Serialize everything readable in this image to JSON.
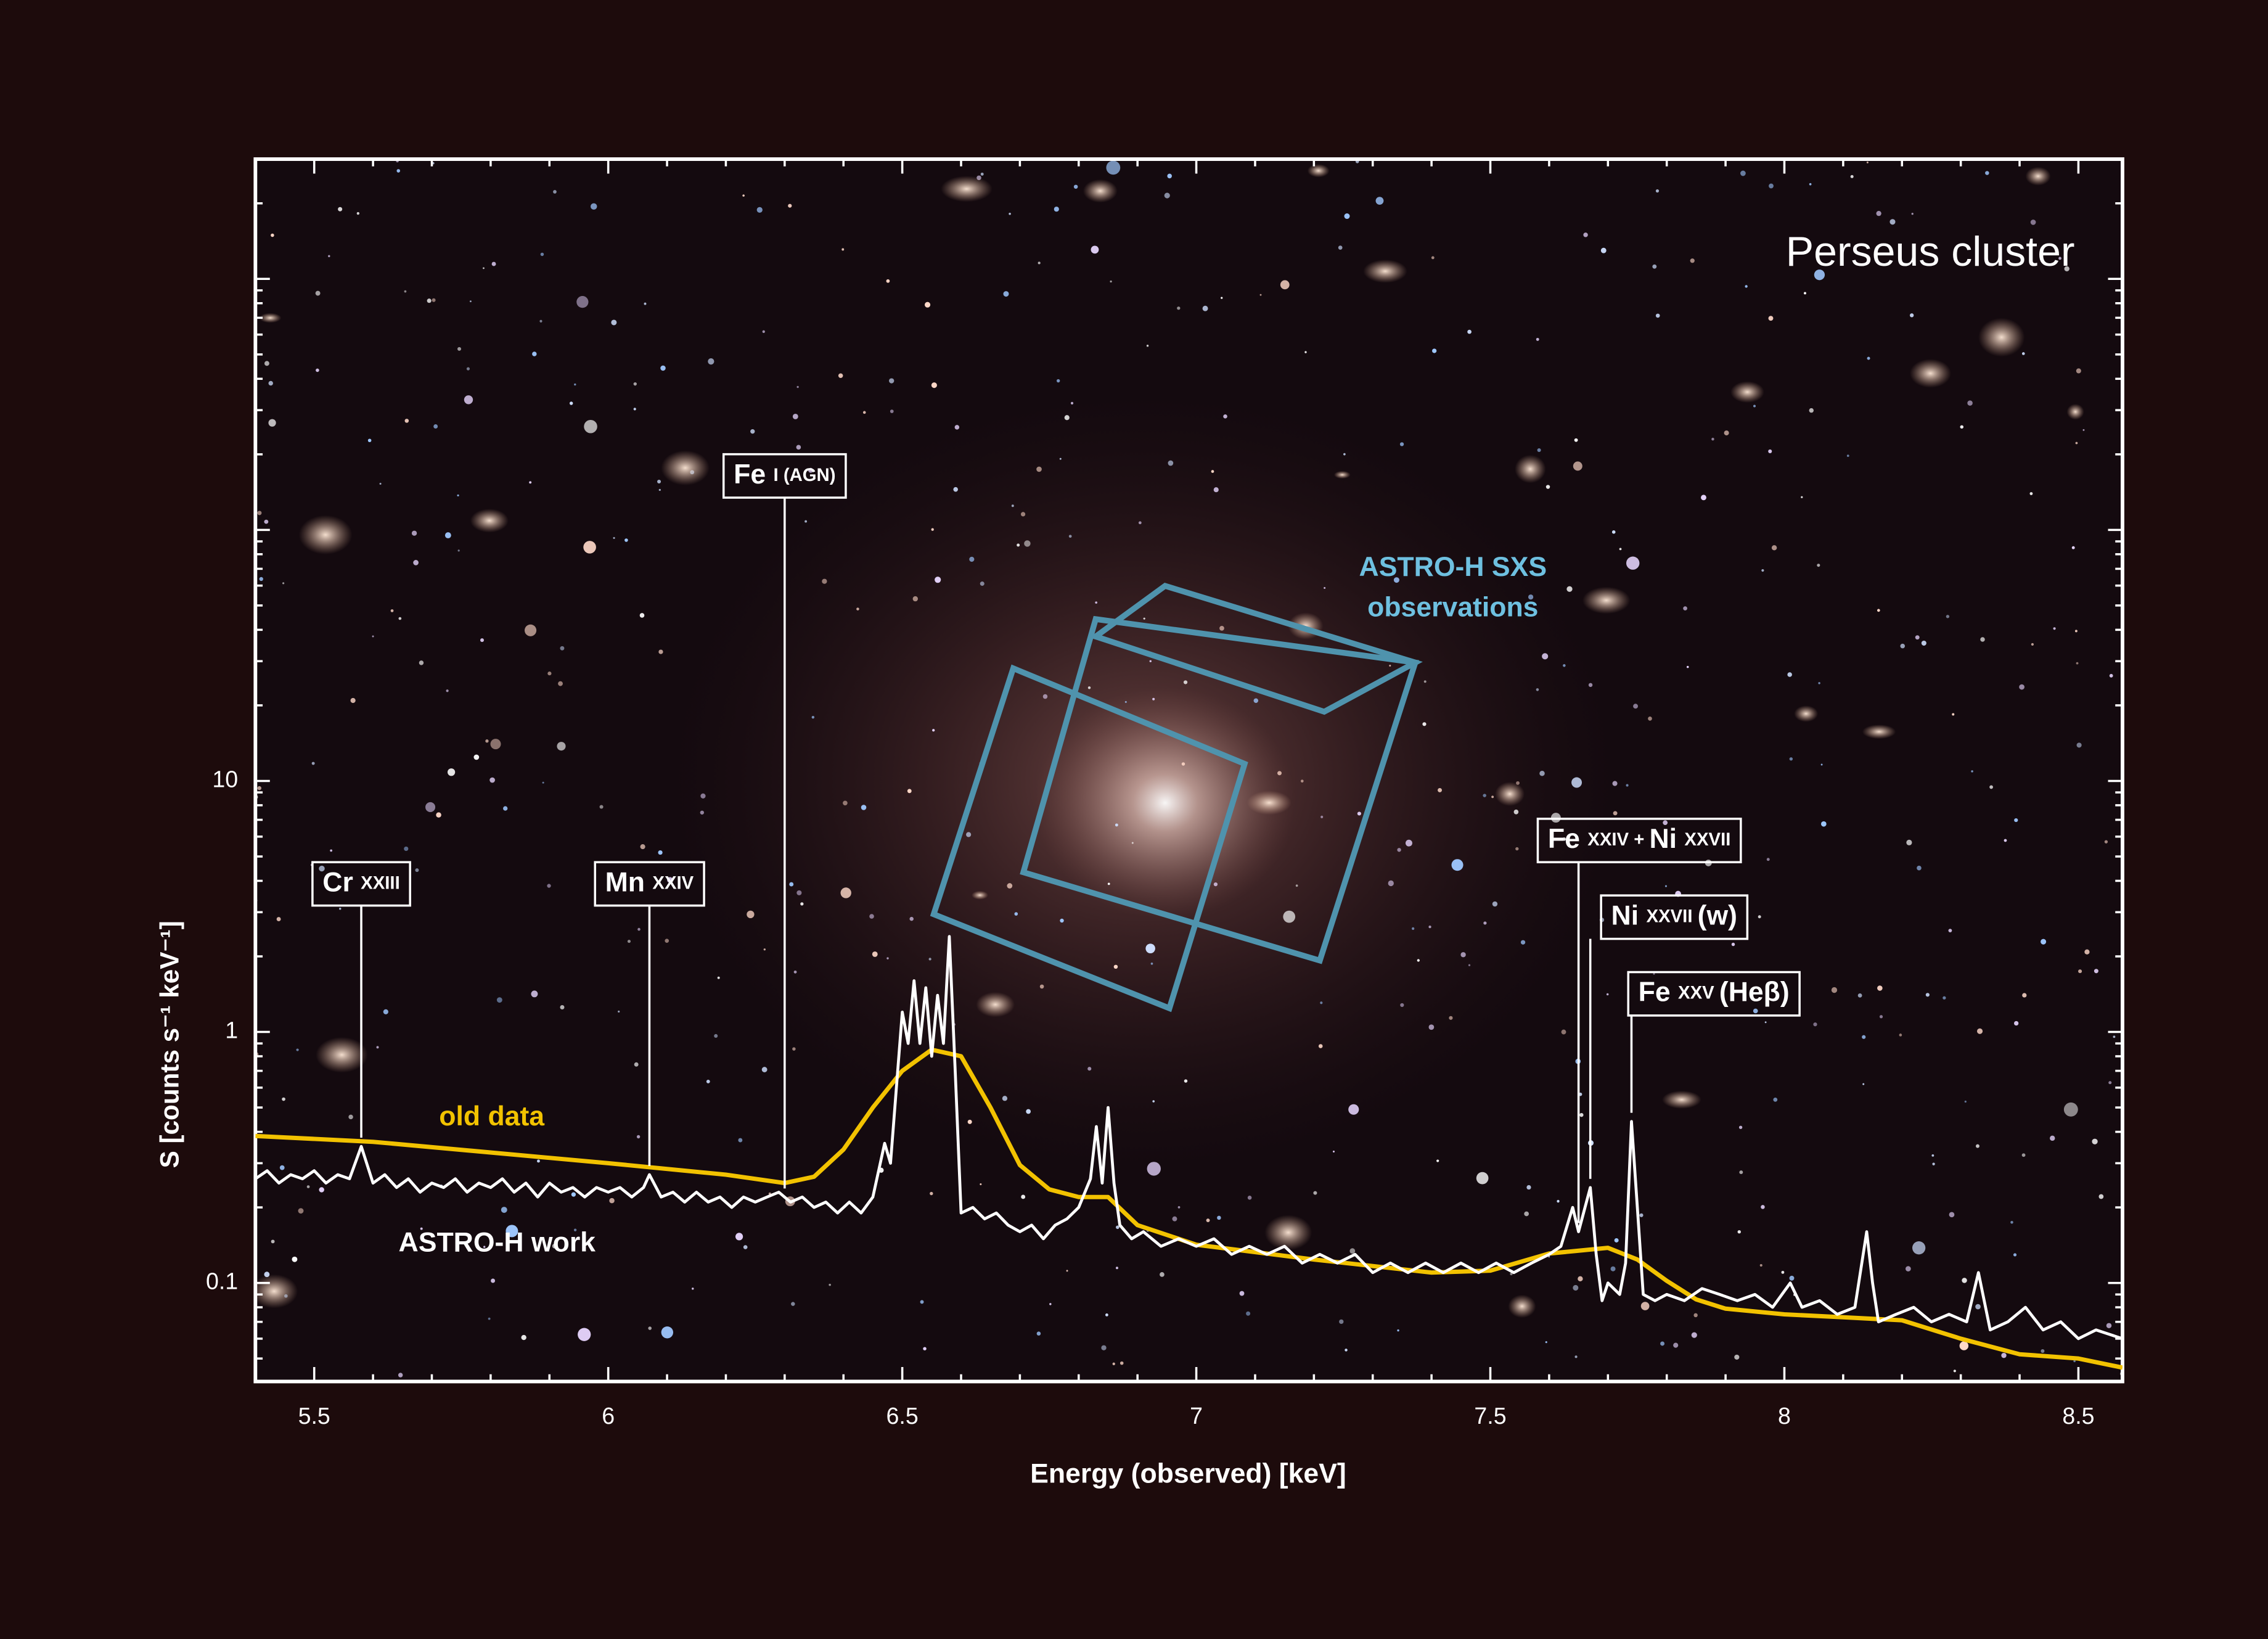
{
  "chart_data": {
    "type": "line",
    "title": "Perseus cluster",
    "sxs_label": [
      "ASTRO-H SXS",
      "observations"
    ],
    "x_label": "Energy (observed) [keV]",
    "y_label": "S [counts s⁻¹ keV⁻¹]",
    "xlim": [
      5.4,
      8.575
    ],
    "xticks": [
      5.5,
      6,
      6.5,
      7,
      7.5,
      8,
      8.5
    ],
    "ylim": [
      0.0405,
      3000
    ],
    "yticks": [
      0.1,
      1,
      10
    ],
    "log_y": true,
    "series": [
      {
        "name": "old data",
        "color": "#f2c200",
        "x": [
          5.4,
          5.6,
          6.0,
          6.2,
          6.3,
          6.35,
          6.4,
          6.45,
          6.5,
          6.55,
          6.6,
          6.65,
          6.7,
          6.75,
          6.8,
          6.85,
          6.9,
          7.0,
          7.2,
          7.4,
          7.5,
          7.6,
          7.7,
          7.75,
          7.8,
          7.85,
          7.9,
          8.0,
          8.1,
          8.2,
          8.3,
          8.4,
          8.5,
          8.575
        ],
        "values": [
          0.385,
          0.365,
          0.3,
          0.27,
          0.25,
          0.265,
          0.34,
          0.5,
          0.7,
          0.85,
          0.8,
          0.5,
          0.295,
          0.236,
          0.22,
          0.22,
          0.17,
          0.142,
          0.124,
          0.11,
          0.112,
          0.131,
          0.138,
          0.124,
          0.102,
          0.086,
          0.079,
          0.075,
          0.073,
          0.071,
          0.06,
          0.052,
          0.05,
          0.046
        ]
      },
      {
        "name": "ASTRO-H work",
        "color": "#ffffff",
        "x": [
          5.4,
          5.42,
          5.44,
          5.46,
          5.48,
          5.5,
          5.52,
          5.54,
          5.56,
          5.58,
          5.6,
          5.62,
          5.64,
          5.66,
          5.68,
          5.7,
          5.72,
          5.74,
          5.76,
          5.78,
          5.8,
          5.82,
          5.84,
          5.86,
          5.88,
          5.9,
          5.92,
          5.94,
          5.96,
          5.98,
          6.0,
          6.02,
          6.04,
          6.06,
          6.07,
          6.09,
          6.11,
          6.13,
          6.15,
          6.17,
          6.19,
          6.21,
          6.23,
          6.25,
          6.27,
          6.29,
          6.31,
          6.33,
          6.35,
          6.37,
          6.39,
          6.41,
          6.43,
          6.45,
          6.47,
          6.48,
          6.5,
          6.51,
          6.52,
          6.53,
          6.54,
          6.55,
          6.56,
          6.57,
          6.58,
          6.59,
          6.6,
          6.62,
          6.64,
          6.66,
          6.68,
          6.7,
          6.72,
          6.74,
          6.76,
          6.78,
          6.8,
          6.82,
          6.83,
          6.84,
          6.85,
          6.86,
          6.87,
          6.89,
          6.91,
          6.94,
          6.97,
          7.0,
          7.03,
          7.06,
          7.09,
          7.12,
          7.15,
          7.18,
          7.21,
          7.24,
          7.27,
          7.3,
          7.33,
          7.36,
          7.39,
          7.42,
          7.45,
          7.48,
          7.51,
          7.54,
          7.57,
          7.6,
          7.62,
          7.64,
          7.65,
          7.67,
          7.68,
          7.69,
          7.7,
          7.72,
          7.73,
          7.74,
          7.75,
          7.76,
          7.78,
          7.8,
          7.83,
          7.86,
          7.89,
          7.92,
          7.95,
          7.98,
          8.01,
          8.03,
          8.06,
          8.09,
          8.12,
          8.14,
          8.15,
          8.16,
          8.19,
          8.22,
          8.25,
          8.28,
          8.31,
          8.33,
          8.35,
          8.38,
          8.41,
          8.44,
          8.47,
          8.5,
          8.53,
          8.575
        ],
        "values": [
          0.26,
          0.28,
          0.25,
          0.27,
          0.26,
          0.28,
          0.25,
          0.27,
          0.26,
          0.35,
          0.25,
          0.27,
          0.24,
          0.26,
          0.23,
          0.25,
          0.24,
          0.26,
          0.23,
          0.25,
          0.24,
          0.26,
          0.23,
          0.25,
          0.22,
          0.25,
          0.23,
          0.24,
          0.22,
          0.24,
          0.23,
          0.24,
          0.22,
          0.24,
          0.27,
          0.22,
          0.23,
          0.21,
          0.23,
          0.21,
          0.22,
          0.2,
          0.22,
          0.21,
          0.22,
          0.23,
          0.21,
          0.22,
          0.2,
          0.21,
          0.19,
          0.21,
          0.19,
          0.22,
          0.36,
          0.3,
          1.2,
          0.9,
          1.6,
          0.9,
          1.5,
          0.8,
          1.4,
          0.9,
          2.4,
          0.7,
          0.19,
          0.2,
          0.18,
          0.19,
          0.17,
          0.16,
          0.17,
          0.15,
          0.17,
          0.18,
          0.2,
          0.26,
          0.42,
          0.25,
          0.5,
          0.25,
          0.17,
          0.15,
          0.16,
          0.14,
          0.15,
          0.14,
          0.15,
          0.13,
          0.14,
          0.13,
          0.14,
          0.12,
          0.13,
          0.12,
          0.13,
          0.11,
          0.12,
          0.11,
          0.12,
          0.11,
          0.12,
          0.11,
          0.12,
          0.11,
          0.12,
          0.13,
          0.14,
          0.2,
          0.16,
          0.24,
          0.13,
          0.085,
          0.1,
          0.09,
          0.12,
          0.44,
          0.2,
          0.09,
          0.085,
          0.09,
          0.085,
          0.095,
          0.09,
          0.085,
          0.09,
          0.08,
          0.1,
          0.08,
          0.085,
          0.075,
          0.08,
          0.16,
          0.1,
          0.07,
          0.075,
          0.08,
          0.07,
          0.075,
          0.07,
          0.11,
          0.065,
          0.07,
          0.08,
          0.065,
          0.07,
          0.06,
          0.065,
          0.06
        ]
      }
    ],
    "annotations": [
      {
        "label": "Cr XXIII",
        "x": 5.58
      },
      {
        "label": "Mn XXIV",
        "x": 6.07
      },
      {
        "label": "Fe I (AGN)",
        "x": 6.3
      },
      {
        "label": "Fe XXIV + Ni XXVII",
        "x": 7.65
      },
      {
        "label": "Ni XXVII (w)",
        "x": 7.67
      },
      {
        "label": "Fe XXV (Heβ)",
        "x": 7.74
      }
    ]
  }
}
